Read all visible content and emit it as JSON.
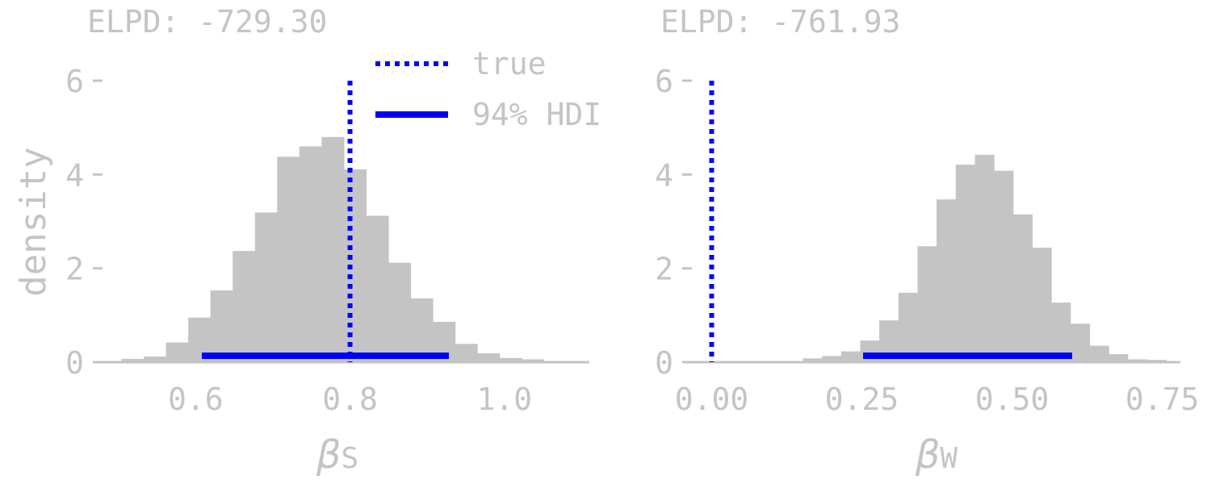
{
  "colors": {
    "bars": "#c4c4c4",
    "text": "#c4c4c4",
    "axis": "#c4c4c4",
    "true_line": "#0000ff",
    "hdi": "#0000ff"
  },
  "legend": {
    "placement": "top-right of left panel",
    "items": [
      {
        "label": "true",
        "style": "dotted"
      },
      {
        "label": "94% HDI",
        "style": "solid"
      }
    ]
  },
  "shared_ylabel": "density",
  "chart_data": [
    {
      "type": "bar",
      "title": "ELPD: -729.30",
      "xlabel_symbol": "β",
      "xlabel_sub": "S",
      "xlim": [
        0.47,
        1.11
      ],
      "ylim": [
        0,
        6
      ],
      "xticks": [
        0.6,
        0.8,
        1.0
      ],
      "xtick_labels": [
        "0.6",
        "0.8",
        "1.0"
      ],
      "yticks": [
        0,
        2,
        4,
        6
      ],
      "ytick_labels": [
        "0",
        "2",
        "4",
        "6"
      ],
      "bin_start": 0.4752,
      "bin_width": 0.0288,
      "values": [
        0.0,
        0.07,
        0.12,
        0.42,
        0.95,
        1.53,
        2.37,
        3.19,
        4.38,
        4.6,
        4.8,
        4.11,
        3.12,
        2.12,
        1.36,
        0.86,
        0.39,
        0.19,
        0.09,
        0.06,
        0.0
      ],
      "true_value": 0.8,
      "true_line_top": 6,
      "hdi": [
        0.608,
        0.928
      ]
    },
    {
      "type": "bar",
      "title": "ELPD: -761.93",
      "xlabel_symbol": "β",
      "xlabel_sub": "W",
      "xlim": [
        -0.045,
        0.78
      ],
      "ylim": [
        0,
        6
      ],
      "xticks": [
        0.0,
        0.25,
        0.5,
        0.75
      ],
      "xtick_labels": [
        "0.00",
        "0.25",
        "0.50",
        "0.75"
      ],
      "yticks": [
        0,
        2,
        4,
        6
      ],
      "ytick_labels": [
        "0",
        "2",
        "4",
        "6"
      ],
      "bin_start": 0.12,
      "bin_width": 0.0318,
      "values": [
        0.02,
        0.08,
        0.13,
        0.23,
        0.46,
        0.89,
        1.48,
        2.47,
        3.47,
        4.21,
        4.42,
        4.08,
        3.15,
        2.44,
        1.27,
        0.82,
        0.35,
        0.17,
        0.06,
        0.05
      ],
      "true_value": 0.0,
      "true_line_top": 6,
      "hdi": [
        0.252,
        0.6
      ]
    }
  ]
}
